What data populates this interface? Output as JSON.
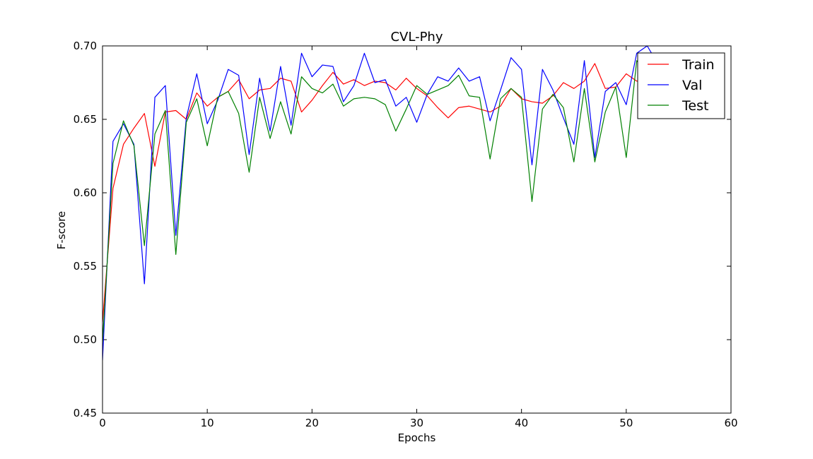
{
  "chart_data": {
    "type": "line",
    "title": "CVL-Phy",
    "xlabel": "Epochs",
    "ylabel": "F-score",
    "xlim": [
      0,
      60
    ],
    "ylim": [
      0.45,
      0.7
    ],
    "xticks": [
      "0",
      "10",
      "20",
      "30",
      "40",
      "50",
      "60"
    ],
    "yticks": [
      "0.45",
      "0.50",
      "0.55",
      "0.60",
      "0.65",
      "0.70"
    ],
    "grid": false,
    "legend_position": "top-right",
    "x": [
      0,
      1,
      2,
      3,
      4,
      5,
      6,
      7,
      8,
      9,
      10,
      11,
      12,
      13,
      14,
      15,
      16,
      17,
      18,
      19,
      20,
      21,
      22,
      23,
      24,
      25,
      26,
      27,
      28,
      29,
      30,
      31,
      32,
      33,
      34,
      35,
      36,
      37,
      38,
      39,
      40,
      41,
      42,
      43,
      44,
      45,
      46,
      47,
      48,
      49,
      50,
      51,
      52,
      53
    ],
    "series": [
      {
        "name": "Train",
        "color": "#ff0000",
        "values": [
          0.512,
          0.603,
          0.633,
          0.644,
          0.654,
          0.618,
          0.655,
          0.656,
          0.65,
          0.668,
          0.659,
          0.665,
          0.669,
          0.677,
          0.664,
          0.67,
          0.671,
          0.678,
          0.676,
          0.655,
          0.663,
          0.673,
          0.682,
          0.674,
          0.677,
          0.673,
          0.676,
          0.675,
          0.67,
          0.678,
          0.671,
          0.666,
          0.658,
          0.651,
          0.658,
          0.659,
          0.657,
          0.655,
          0.659,
          0.671,
          0.664,
          0.662,
          0.661,
          0.666,
          0.675,
          0.671,
          0.676,
          0.688,
          0.671,
          0.672,
          0.681,
          0.676,
          0.676,
          0.676
        ]
      },
      {
        "name": "Val",
        "color": "#0000ff",
        "values": [
          0.486,
          0.635,
          0.647,
          0.633,
          0.538,
          0.665,
          0.673,
          0.571,
          0.651,
          0.681,
          0.647,
          0.663,
          0.684,
          0.68,
          0.626,
          0.678,
          0.642,
          0.686,
          0.646,
          0.695,
          0.679,
          0.687,
          0.686,
          0.662,
          0.673,
          0.695,
          0.675,
          0.677,
          0.659,
          0.665,
          0.648,
          0.667,
          0.679,
          0.676,
          0.685,
          0.676,
          0.679,
          0.649,
          0.67,
          0.692,
          0.684,
          0.619,
          0.684,
          0.67,
          0.651,
          0.633,
          0.69,
          0.624,
          0.669,
          0.675,
          0.66,
          0.695,
          0.7,
          0.688
        ]
      },
      {
        "name": "Test",
        "color": "#008000",
        "values": [
          0.498,
          0.62,
          0.649,
          0.632,
          0.564,
          0.64,
          0.656,
          0.558,
          0.648,
          0.664,
          0.632,
          0.665,
          0.669,
          0.654,
          0.614,
          0.665,
          0.637,
          0.662,
          0.64,
          0.679,
          0.671,
          0.668,
          0.674,
          0.659,
          0.664,
          0.665,
          0.664,
          0.66,
          0.642,
          0.657,
          0.673,
          0.667,
          0.67,
          0.673,
          0.68,
          0.666,
          0.665,
          0.623,
          0.664,
          0.671,
          0.665,
          0.594,
          0.657,
          0.667,
          0.658,
          0.621,
          0.671,
          0.621,
          0.655,
          0.672,
          0.624,
          0.69,
          0.68,
          0.676
        ]
      }
    ]
  }
}
